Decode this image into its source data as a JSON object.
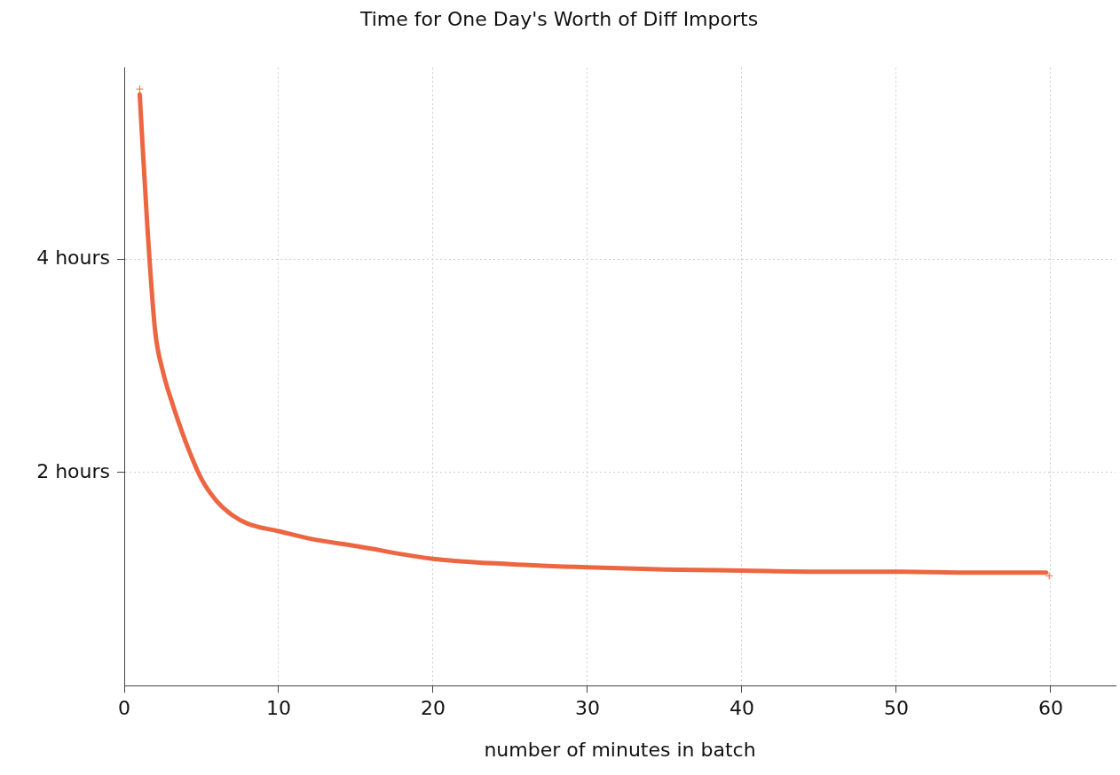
{
  "chart_data": {
    "type": "line",
    "title": "Time for One Day's Worth of Diff Imports",
    "xlabel": "number of minutes in batch",
    "series": [
      {
        "type": "line",
        "color": "#ec6641",
        "marker": "none",
        "x": [
          1,
          1.5,
          2,
          2.5,
          3,
          4,
          5,
          6,
          7,
          8,
          10,
          12,
          15,
          20,
          25,
          30,
          35,
          40,
          45,
          50,
          55,
          59.7
        ],
        "values": [
          5.55,
          4.3,
          3.33,
          2.95,
          2.7,
          2.28,
          1.94,
          1.73,
          1.6,
          1.52,
          1.45,
          1.38,
          1.31,
          1.19,
          1.14,
          1.11,
          1.09,
          1.08,
          1.07,
          1.07,
          1.06,
          1.06
        ]
      },
      {
        "type": "scatter",
        "color": "#ec6641",
        "marker": "cross",
        "x": [
          1,
          59.9
        ],
        "values": [
          5.6,
          1.03
        ]
      }
    ],
    "xlim": [
      0,
      64.2
    ],
    "xticks": [
      0,
      10,
      20,
      30,
      40,
      50,
      60
    ],
    "ylim": [
      0,
      5.8
    ],
    "yticks": [
      {
        "value": 2,
        "label": "2 hours"
      },
      {
        "value": 4,
        "label": "4 hours"
      }
    ],
    "grid": true,
    "line_style": "solid",
    "legend": false
  }
}
